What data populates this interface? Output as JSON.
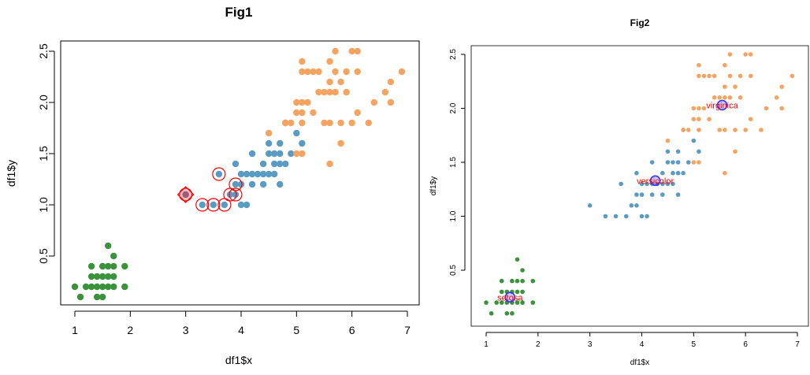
{
  "colors": {
    "setosa": "#3a923a",
    "versicolor": "#5a9bc4",
    "virginica": "#f4a460",
    "highlight": "#ff0000",
    "centroid": "#3333ff"
  },
  "chart_data": [
    {
      "id": "fig1",
      "type": "scatter",
      "title": "Fig1",
      "xlabel": "df1$x",
      "ylabel": "df1$y",
      "xlim": [
        0.73,
        7.17
      ],
      "ylim": [
        0.0,
        2.6
      ],
      "xticks": [
        1,
        2,
        3,
        4,
        5,
        6,
        7
      ],
      "yticks": [
        0.5,
        1.0,
        1.5,
        2.0,
        2.5
      ],
      "xtick_labels": [
        "1",
        "2",
        "3",
        "4",
        "5",
        "6",
        "7"
      ],
      "ytick_labels": [
        "0.5",
        "1.0",
        "1.5",
        "2.0",
        "2.5"
      ],
      "series": [
        {
          "name": "setosa",
          "color": "#3a923a",
          "points": [
            [
              1.0,
              0.2
            ],
            [
              1.1,
              0.1
            ],
            [
              1.2,
              0.2
            ],
            [
              1.3,
              0.2
            ],
            [
              1.3,
              0.3
            ],
            [
              1.3,
              0.4
            ],
            [
              1.4,
              0.2
            ],
            [
              1.4,
              0.1
            ],
            [
              1.4,
              0.3
            ],
            [
              1.5,
              0.2
            ],
            [
              1.5,
              0.4
            ],
            [
              1.5,
              0.1
            ],
            [
              1.5,
              0.3
            ],
            [
              1.6,
              0.2
            ],
            [
              1.6,
              0.4
            ],
            [
              1.6,
              0.6
            ],
            [
              1.6,
              0.3
            ],
            [
              1.7,
              0.2
            ],
            [
              1.7,
              0.5
            ],
            [
              1.7,
              0.4
            ],
            [
              1.7,
              0.3
            ],
            [
              1.9,
              0.2
            ],
            [
              1.9,
              0.4
            ]
          ]
        },
        {
          "name": "versicolor",
          "color": "#5a9bc4",
          "points": [
            [
              3.0,
              1.1
            ],
            [
              3.3,
              1.0
            ],
            [
              3.5,
              1.0
            ],
            [
              3.6,
              1.3
            ],
            [
              3.7,
              1.0
            ],
            [
              3.8,
              1.1
            ],
            [
              3.9,
              1.1
            ],
            [
              3.9,
              1.2
            ],
            [
              3.9,
              1.4
            ],
            [
              4.0,
              1.0
            ],
            [
              4.0,
              1.2
            ],
            [
              4.0,
              1.3
            ],
            [
              4.1,
              1.0
            ],
            [
              4.1,
              1.3
            ],
            [
              4.2,
              1.2
            ],
            [
              4.2,
              1.3
            ],
            [
              4.2,
              1.5
            ],
            [
              4.3,
              1.3
            ],
            [
              4.4,
              1.2
            ],
            [
              4.4,
              1.3
            ],
            [
              4.4,
              1.4
            ],
            [
              4.5,
              1.3
            ],
            [
              4.5,
              1.5
            ],
            [
              4.5,
              1.6
            ],
            [
              4.6,
              1.3
            ],
            [
              4.6,
              1.4
            ],
            [
              4.6,
              1.5
            ],
            [
              4.7,
              1.2
            ],
            [
              4.7,
              1.4
            ],
            [
              4.7,
              1.5
            ],
            [
              4.7,
              1.6
            ],
            [
              4.8,
              1.4
            ],
            [
              4.8,
              1.8
            ],
            [
              4.9,
              1.5
            ],
            [
              5.0,
              1.7
            ],
            [
              5.1,
              1.6
            ]
          ]
        },
        {
          "name": "virginica",
          "color": "#f4a460",
          "points": [
            [
              4.5,
              1.7
            ],
            [
              4.8,
              1.8
            ],
            [
              4.9,
              1.8
            ],
            [
              5.0,
              1.5
            ],
            [
              5.0,
              1.9
            ],
            [
              5.0,
              2.0
            ],
            [
              5.1,
              1.5
            ],
            [
              5.1,
              1.8
            ],
            [
              5.1,
              1.9
            ],
            [
              5.1,
              2.0
            ],
            [
              5.1,
              2.3
            ],
            [
              5.1,
              2.4
            ],
            [
              5.2,
              2.0
            ],
            [
              5.2,
              2.3
            ],
            [
              5.3,
              1.9
            ],
            [
              5.3,
              2.3
            ],
            [
              5.4,
              2.1
            ],
            [
              5.4,
              2.3
            ],
            [
              5.5,
              1.8
            ],
            [
              5.5,
              2.1
            ],
            [
              5.6,
              1.4
            ],
            [
              5.6,
              1.8
            ],
            [
              5.6,
              2.1
            ],
            [
              5.6,
              2.2
            ],
            [
              5.6,
              2.4
            ],
            [
              5.7,
              2.1
            ],
            [
              5.7,
              2.3
            ],
            [
              5.7,
              2.5
            ],
            [
              5.8,
              1.6
            ],
            [
              5.8,
              1.8
            ],
            [
              5.8,
              2.2
            ],
            [
              5.9,
              2.1
            ],
            [
              5.9,
              2.3
            ],
            [
              6.0,
              1.8
            ],
            [
              6.0,
              2.5
            ],
            [
              6.1,
              1.9
            ],
            [
              6.1,
              2.3
            ],
            [
              6.1,
              2.5
            ],
            [
              6.3,
              1.8
            ],
            [
              6.4,
              2.0
            ],
            [
              6.6,
              2.1
            ],
            [
              6.7,
              2.0
            ],
            [
              6.7,
              2.2
            ],
            [
              6.9,
              2.3
            ]
          ]
        }
      ],
      "highlighted_points": [
        [
          3.0,
          1.1
        ],
        [
          3.3,
          1.0
        ],
        [
          3.5,
          1.0
        ],
        [
          3.6,
          1.3
        ],
        [
          3.7,
          1.0
        ],
        [
          3.8,
          1.1
        ],
        [
          3.9,
          1.1
        ],
        [
          3.9,
          1.2
        ]
      ],
      "selected_point": [
        3.0,
        1.1
      ]
    },
    {
      "id": "fig2",
      "type": "scatter",
      "title": "Fig2",
      "xlabel": "df1$x",
      "ylabel": "df1$y",
      "xlim": [
        0.73,
        7.17
      ],
      "ylim": [
        0.0,
        2.6
      ],
      "xticks": [
        1,
        2,
        3,
        4,
        5,
        6,
        7
      ],
      "yticks": [
        0.5,
        1.0,
        1.5,
        2.0,
        2.5
      ],
      "xtick_labels": [
        "1",
        "2",
        "3",
        "4",
        "5",
        "6",
        "7"
      ],
      "ytick_labels": [
        "0.5",
        "1.0",
        "1.5",
        "2.0",
        "2.5"
      ],
      "series": [
        {
          "name": "setosa",
          "color": "#3a923a",
          "points": [
            [
              1.0,
              0.2
            ],
            [
              1.1,
              0.1
            ],
            [
              1.2,
              0.2
            ],
            [
              1.3,
              0.2
            ],
            [
              1.3,
              0.3
            ],
            [
              1.3,
              0.4
            ],
            [
              1.4,
              0.2
            ],
            [
              1.4,
              0.1
            ],
            [
              1.4,
              0.3
            ],
            [
              1.5,
              0.2
            ],
            [
              1.5,
              0.4
            ],
            [
              1.5,
              0.1
            ],
            [
              1.5,
              0.3
            ],
            [
              1.6,
              0.2
            ],
            [
              1.6,
              0.4
            ],
            [
              1.6,
              0.6
            ],
            [
              1.6,
              0.3
            ],
            [
              1.7,
              0.2
            ],
            [
              1.7,
              0.5
            ],
            [
              1.7,
              0.4
            ],
            [
              1.7,
              0.3
            ],
            [
              1.9,
              0.2
            ],
            [
              1.9,
              0.4
            ]
          ]
        },
        {
          "name": "versicolor",
          "color": "#5a9bc4",
          "points": [
            [
              3.0,
              1.1
            ],
            [
              3.3,
              1.0
            ],
            [
              3.5,
              1.0
            ],
            [
              3.6,
              1.3
            ],
            [
              3.7,
              1.0
            ],
            [
              3.8,
              1.1
            ],
            [
              3.9,
              1.1
            ],
            [
              3.9,
              1.2
            ],
            [
              3.9,
              1.4
            ],
            [
              4.0,
              1.0
            ],
            [
              4.0,
              1.2
            ],
            [
              4.0,
              1.3
            ],
            [
              4.1,
              1.0
            ],
            [
              4.1,
              1.3
            ],
            [
              4.2,
              1.2
            ],
            [
              4.2,
              1.3
            ],
            [
              4.2,
              1.5
            ],
            [
              4.3,
              1.3
            ],
            [
              4.4,
              1.2
            ],
            [
              4.4,
              1.3
            ],
            [
              4.4,
              1.4
            ],
            [
              4.5,
              1.3
            ],
            [
              4.5,
              1.5
            ],
            [
              4.5,
              1.6
            ],
            [
              4.6,
              1.3
            ],
            [
              4.6,
              1.4
            ],
            [
              4.6,
              1.5
            ],
            [
              4.7,
              1.2
            ],
            [
              4.7,
              1.4
            ],
            [
              4.7,
              1.5
            ],
            [
              4.7,
              1.6
            ],
            [
              4.8,
              1.4
            ],
            [
              4.8,
              1.8
            ],
            [
              4.9,
              1.5
            ],
            [
              5.0,
              1.7
            ],
            [
              5.1,
              1.6
            ]
          ]
        },
        {
          "name": "virginica",
          "color": "#f4a460",
          "points": [
            [
              4.5,
              1.7
            ],
            [
              4.8,
              1.8
            ],
            [
              4.9,
              1.8
            ],
            [
              5.0,
              1.5
            ],
            [
              5.0,
              1.9
            ],
            [
              5.0,
              2.0
            ],
            [
              5.1,
              1.5
            ],
            [
              5.1,
              1.8
            ],
            [
              5.1,
              1.9
            ],
            [
              5.1,
              2.0
            ],
            [
              5.1,
              2.3
            ],
            [
              5.1,
              2.4
            ],
            [
              5.2,
              2.0
            ],
            [
              5.2,
              2.3
            ],
            [
              5.3,
              1.9
            ],
            [
              5.3,
              2.3
            ],
            [
              5.4,
              2.1
            ],
            [
              5.4,
              2.3
            ],
            [
              5.5,
              1.8
            ],
            [
              5.5,
              2.1
            ],
            [
              5.6,
              1.4
            ],
            [
              5.6,
              1.8
            ],
            [
              5.6,
              2.1
            ],
            [
              5.6,
              2.2
            ],
            [
              5.6,
              2.4
            ],
            [
              5.7,
              2.1
            ],
            [
              5.7,
              2.3
            ],
            [
              5.7,
              2.5
            ],
            [
              5.8,
              1.6
            ],
            [
              5.8,
              1.8
            ],
            [
              5.8,
              2.2
            ],
            [
              5.9,
              2.1
            ],
            [
              5.9,
              2.3
            ],
            [
              6.0,
              1.8
            ],
            [
              6.0,
              2.5
            ],
            [
              6.1,
              1.9
            ],
            [
              6.1,
              2.3
            ],
            [
              6.1,
              2.5
            ],
            [
              6.3,
              1.8
            ],
            [
              6.4,
              2.0
            ],
            [
              6.6,
              2.1
            ],
            [
              6.7,
              2.0
            ],
            [
              6.7,
              2.2
            ],
            [
              6.9,
              2.3
            ]
          ]
        }
      ],
      "centroids": [
        {
          "label": "setosa",
          "x": 1.46,
          "y": 0.25
        },
        {
          "label": "versicolor",
          "x": 4.26,
          "y": 1.33
        },
        {
          "label": "virginica",
          "x": 5.55,
          "y": 2.03
        }
      ]
    }
  ]
}
